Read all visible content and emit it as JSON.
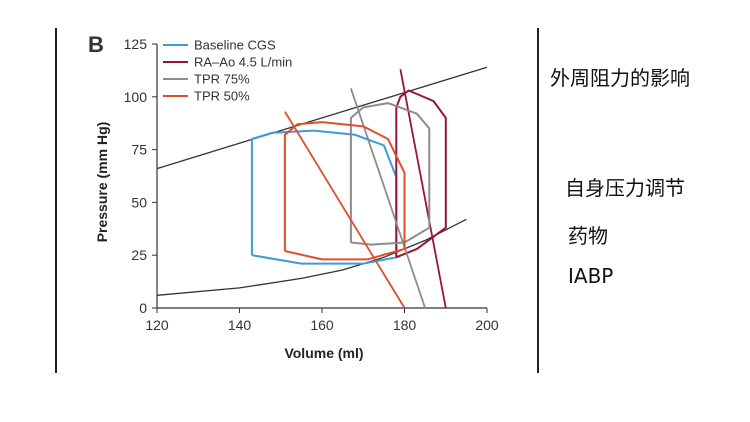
{
  "panel_label": "B",
  "right_text": {
    "line1": "外周阻力的影响",
    "line2": "自身压力调节",
    "line3": "药物",
    "line4": "IABP"
  },
  "colors": {
    "baseline": "#3d9bd6",
    "ra_ao": "#9a1240",
    "tpr75": "#8c8c8c",
    "tpr50": "#e04e2c",
    "curves": "#333333"
  },
  "chart_data": {
    "type": "line",
    "xlabel": "Volume (ml)",
    "ylabel": "Pressure (mm Hg)",
    "xlim": [
      120,
      200
    ],
    "ylim": [
      0,
      125
    ],
    "xticks": [
      120,
      140,
      160,
      180,
      200
    ],
    "yticks": [
      0,
      25,
      50,
      75,
      100,
      125
    ],
    "legend_position": "top-left",
    "legend": [
      "Baseline CGS",
      "RA–Ao 4.5 L/min",
      "TPR 75%",
      "TPR 50%"
    ],
    "esp_line": [
      [
        120,
        66
      ],
      [
        200,
        114
      ]
    ],
    "edp_curve": [
      [
        120,
        6
      ],
      [
        140,
        9.5
      ],
      [
        155,
        14
      ],
      [
        165,
        18
      ],
      [
        175,
        24
      ],
      [
        185,
        32
      ],
      [
        195,
        42
      ]
    ],
    "series": [
      {
        "name": "Baseline CGS",
        "color_key": "baseline",
        "loop": [
          [
            143,
            25
          ],
          [
            155,
            21
          ],
          [
            170,
            21
          ],
          [
            178,
            24
          ],
          [
            178,
            62
          ],
          [
            175,
            77
          ],
          [
            168,
            82
          ],
          [
            158,
            84
          ],
          [
            148,
            83
          ],
          [
            143,
            80
          ],
          [
            143,
            75
          ],
          [
            143,
            25
          ]
        ],
        "ea_line": null
      },
      {
        "name": "RA–Ao 4.5 L/min",
        "color_key": "ra_ao",
        "loop": [
          [
            178,
            24
          ],
          [
            183,
            28
          ],
          [
            190,
            38
          ],
          [
            190,
            90
          ],
          [
            187,
            98
          ],
          [
            181,
            103
          ],
          [
            179,
            100
          ],
          [
            178,
            95
          ],
          [
            178,
            24
          ]
        ],
        "ea_line": [
          [
            179,
            113
          ],
          [
            190,
            0
          ]
        ]
      },
      {
        "name": "TPR 75%",
        "color_key": "tpr75",
        "loop": [
          [
            167,
            31
          ],
          [
            172,
            30
          ],
          [
            180,
            31
          ],
          [
            186,
            38
          ],
          [
            186,
            85
          ],
          [
            183,
            92
          ],
          [
            176,
            97
          ],
          [
            170,
            95
          ],
          [
            167,
            90
          ],
          [
            167,
            31
          ]
        ],
        "ea_line": [
          [
            167,
            104
          ],
          [
            185,
            0
          ]
        ]
      },
      {
        "name": "TPR 50%",
        "color_key": "tpr50",
        "loop": [
          [
            151,
            27
          ],
          [
            160,
            23
          ],
          [
            171,
            23
          ],
          [
            180,
            28
          ],
          [
            180,
            64
          ],
          [
            176,
            80
          ],
          [
            170,
            86
          ],
          [
            160,
            88
          ],
          [
            154,
            87
          ],
          [
            151,
            82
          ],
          [
            151,
            27
          ]
        ],
        "ea_line": [
          [
            151,
            93
          ],
          [
            180,
            0
          ]
        ]
      }
    ]
  }
}
